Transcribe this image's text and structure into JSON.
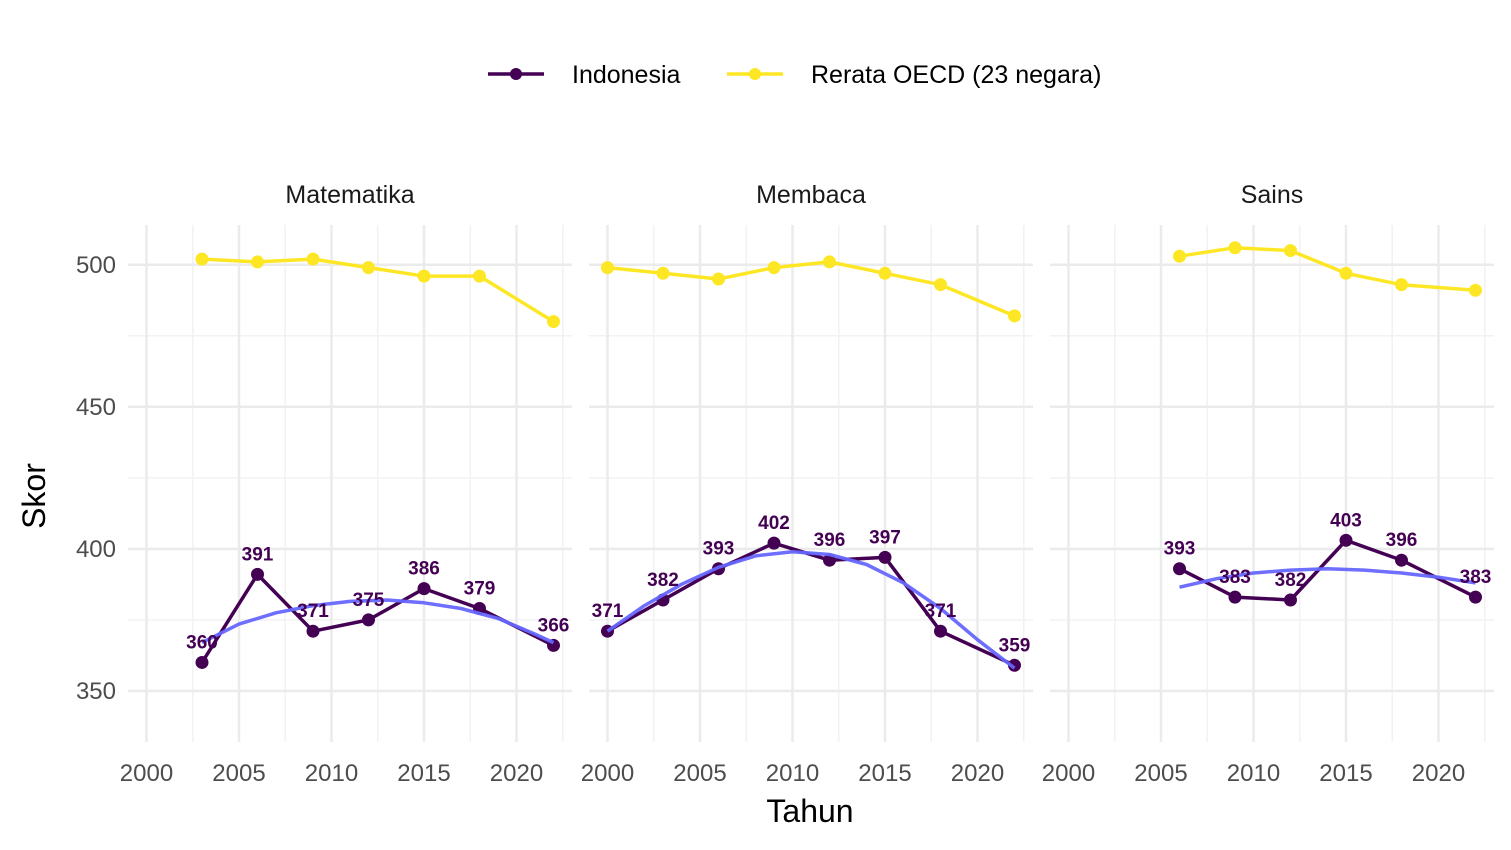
{
  "chart_data": {
    "type": "line",
    "xlabel": "Tahun",
    "ylabel": "Skor",
    "xlim": [
      1999,
      2023
    ],
    "ylim": [
      332,
      514
    ],
    "x_ticks": [
      2000,
      2005,
      2010,
      2015,
      2020
    ],
    "y_ticks": [
      350,
      400,
      450,
      500
    ],
    "grid": true,
    "legend_position": "top",
    "colors": {
      "indonesia": "#440154",
      "oecd": "#FDE725",
      "trend": "#6666FF"
    },
    "legend": [
      {
        "key": "indonesia",
        "label": "Indonesia"
      },
      {
        "key": "oecd",
        "label": "Rerata OECD (23 negara)"
      }
    ],
    "panels": [
      {
        "title": "Matematika",
        "x": [
          2003,
          2006,
          2009,
          2012,
          2015,
          2018,
          2022
        ],
        "series": [
          {
            "name": "Indonesia",
            "key": "indonesia",
            "values": [
              360,
              391,
              371,
              375,
              386,
              379,
              366
            ],
            "labels": [
              "360",
              "391",
              "371",
              "375",
              "386",
              "379",
              "366"
            ]
          },
          {
            "name": "Rerata OECD (23 negara)",
            "key": "oecd",
            "values": [
              502,
              501,
              502,
              499,
              496,
              496,
              480
            ]
          }
        ],
        "trend": {
          "key": "trend",
          "x": [
            2003,
            2005,
            2007,
            2009,
            2011,
            2013,
            2015,
            2017,
            2019,
            2021,
            2022
          ],
          "values": [
            367,
            373.5,
            377.5,
            380,
            381.5,
            382,
            381,
            379,
            375.5,
            370,
            367
          ]
        }
      },
      {
        "title": "Membaca",
        "x": [
          2000,
          2003,
          2006,
          2009,
          2012,
          2015,
          2018,
          2022
        ],
        "series": [
          {
            "name": "Indonesia",
            "key": "indonesia",
            "values": [
              371,
              382,
              393,
              402,
              396,
              397,
              371,
              359
            ],
            "labels": [
              "371",
              "382",
              "393",
              "402",
              "396",
              "397",
              "371",
              "359"
            ]
          },
          {
            "name": "Rerata OECD (23 negara)",
            "key": "oecd",
            "values": [
              499,
              497,
              495,
              499,
              501,
              497,
              493,
              482
            ]
          }
        ],
        "trend": {
          "key": "trend",
          "x": [
            2000,
            2002,
            2004,
            2006,
            2008,
            2010,
            2012,
            2014,
            2016,
            2018,
            2020,
            2022
          ],
          "values": [
            371,
            380,
            387.5,
            393.5,
            397.5,
            399,
            398,
            394.5,
            388,
            379,
            368,
            358
          ]
        }
      },
      {
        "title": "Sains",
        "x": [
          2006,
          2009,
          2012,
          2015,
          2018,
          2022
        ],
        "series": [
          {
            "name": "Indonesia",
            "key": "indonesia",
            "values": [
              393,
              383,
              382,
              403,
              396,
              383
            ],
            "labels": [
              "393",
              "383",
              "382",
              "403",
              "396",
              "383"
            ]
          },
          {
            "name": "Rerata OECD (23 negara)",
            "key": "oecd",
            "values": [
              503,
              506,
              505,
              497,
              493,
              491
            ]
          }
        ],
        "trend": {
          "key": "trend",
          "x": [
            2006,
            2008,
            2010,
            2012,
            2014,
            2016,
            2018,
            2020,
            2022
          ],
          "values": [
            386.5,
            389.5,
            391.5,
            392.5,
            393,
            392.5,
            391.5,
            390,
            388
          ]
        }
      }
    ]
  }
}
